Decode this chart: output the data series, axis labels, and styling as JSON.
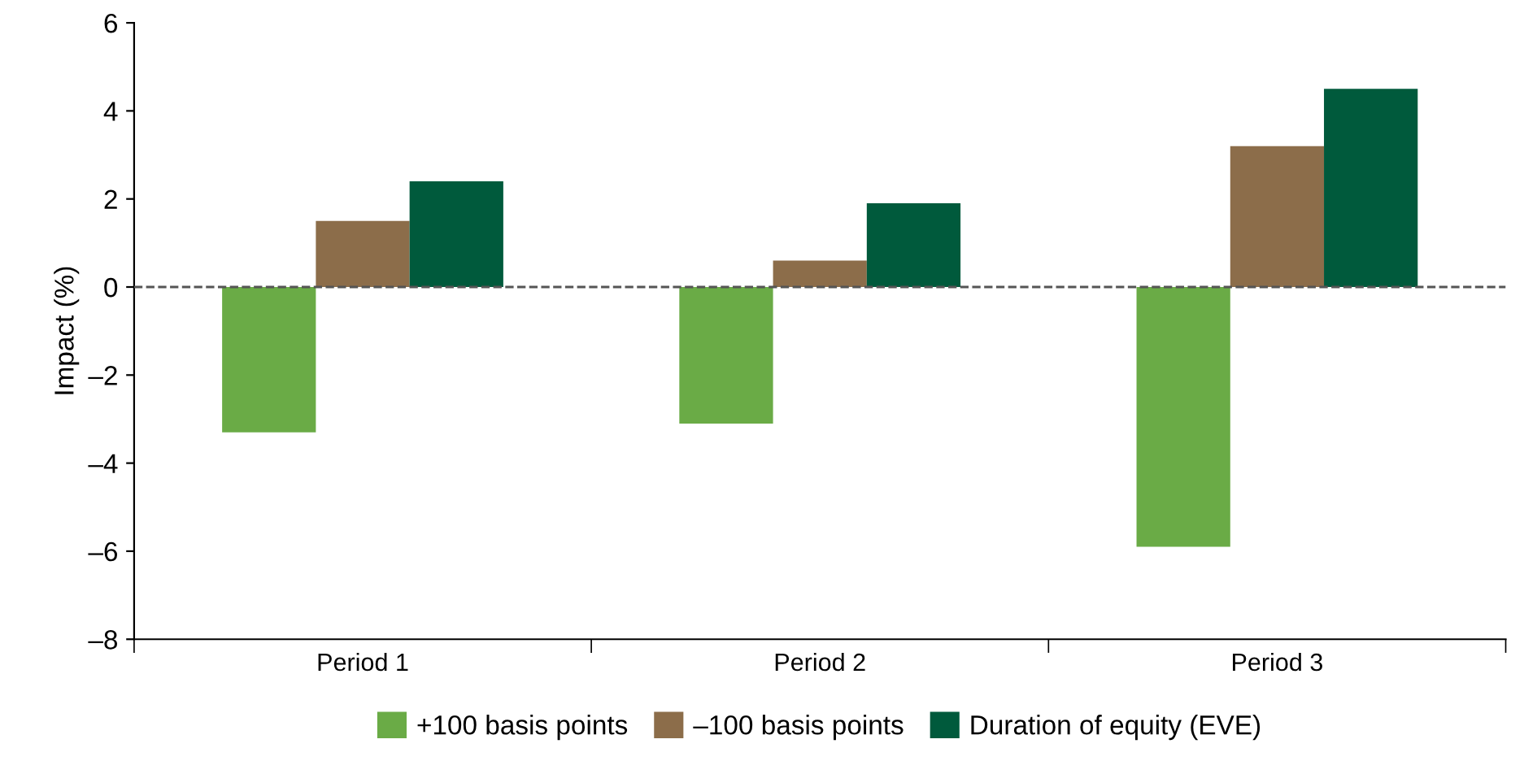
{
  "chart_data": {
    "type": "bar",
    "ylabel": "Impact (%)",
    "categories": [
      "Period 1",
      "Period 2",
      "Period 3"
    ],
    "series": [
      {
        "name": "+100 basis points",
        "color": "#6aab46",
        "values": [
          -3.3,
          -3.1,
          -5.9
        ]
      },
      {
        "name": "–100 basis points",
        "color": "#8c6d4a",
        "values": [
          1.5,
          0.6,
          3.2
        ]
      },
      {
        "name": "Duration of equity (EVE)",
        "color": "#005a3c",
        "values": [
          2.4,
          1.9,
          4.5
        ]
      }
    ],
    "ylim": [
      -8,
      6
    ],
    "yticks": [
      {
        "value": -8,
        "label": "–8"
      },
      {
        "value": -6,
        "label": "–6"
      },
      {
        "value": -4,
        "label": "–4"
      },
      {
        "value": -2,
        "label": "–2"
      },
      0,
      2,
      4,
      6
    ],
    "ref_lines": [
      {
        "axis": "y",
        "value": 0,
        "color": "#555555",
        "line_style": "dashed"
      }
    ],
    "grid": false,
    "legend": "bottom"
  }
}
